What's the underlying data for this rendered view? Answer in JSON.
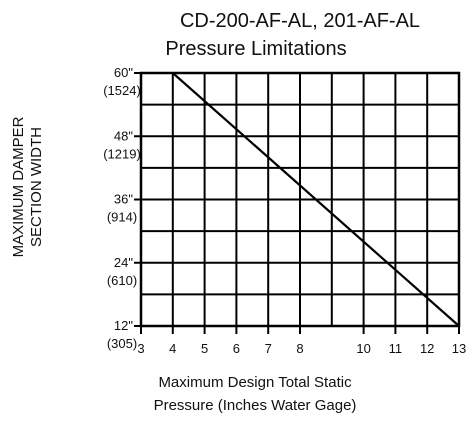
{
  "chart_data": {
    "type": "line",
    "title_lines": [
      "CD-200-AF-AL, 201-AF-AL",
      "Pressure Limitations"
    ],
    "ylabel_lines": [
      "MAXIMUM DAMPER",
      "SECTION WIDTH"
    ],
    "xlabel_lines": [
      "Maximum Design Total Static",
      "Pressure (Inches Water Gage)"
    ],
    "y_ticks": [
      {
        "value": 60,
        "label": "60\"",
        "sub": "(1524)"
      },
      {
        "value": 48,
        "label": "48\"",
        "sub": "(1219)"
      },
      {
        "value": 36,
        "label": "36\"",
        "sub": "(914)"
      },
      {
        "value": 24,
        "label": "24\"",
        "sub": "(610)"
      },
      {
        "value": 12,
        "label": "12\"",
        "sub": "(305)"
      }
    ],
    "x_ticks": [
      {
        "value": 3,
        "label": "3"
      },
      {
        "value": 4,
        "label": "4"
      },
      {
        "value": 5,
        "label": "5"
      },
      {
        "value": 6,
        "label": "6"
      },
      {
        "value": 7,
        "label": "7"
      },
      {
        "value": 8,
        "label": "8"
      },
      {
        "value": 10,
        "label": "10"
      },
      {
        "value": 11,
        "label": "11"
      },
      {
        "value": 12,
        "label": "12"
      },
      {
        "value": 13,
        "label": "13"
      }
    ],
    "xlim": [
      3,
      13
    ],
    "ylim": [
      12,
      60
    ],
    "grid": true,
    "series": [
      {
        "x": [
          4,
          13
        ],
        "y": [
          60,
          12
        ]
      }
    ]
  }
}
